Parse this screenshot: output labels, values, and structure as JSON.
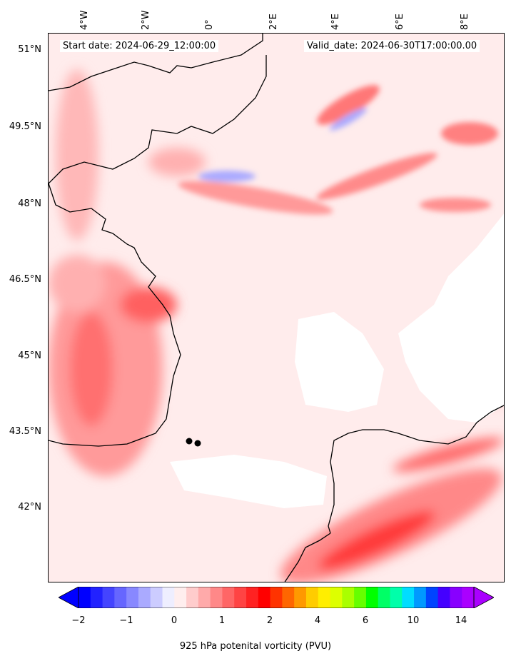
{
  "header": {
    "start_label": "Start date: 2024-06-29_12:00:00",
    "valid_label": "Valid_date: 2024-06-30T17:00:00.00"
  },
  "axes": {
    "lon_labels": [
      "4°W",
      "2°W",
      "0°",
      "2°E",
      "4°E",
      "6°E",
      "8°E"
    ],
    "lat_labels": [
      "51°N",
      "49.5°N",
      "48°N",
      "46.5°N",
      "45°N",
      "43.5°N",
      "42°N"
    ]
  },
  "colorbar": {
    "label": "925 hPa potenital vorticity (PVU)",
    "tick_labels": [
      "−2",
      "−1",
      "0",
      "1",
      "2",
      "4",
      "6",
      "10",
      "14"
    ],
    "colors": [
      "#0000ff",
      "#2222ff",
      "#4444ff",
      "#6666ff",
      "#8888ff",
      "#aaaaff",
      "#ccccff",
      "#eeeeff",
      "#ffeeee",
      "#ffcccc",
      "#ffaaaa",
      "#ff8888",
      "#ff6666",
      "#ff4444",
      "#ff2222",
      "#ff0000",
      "#ff3300",
      "#ff6600",
      "#ff9900",
      "#ffcc00",
      "#ffee00",
      "#ddff00",
      "#aaff00",
      "#66ff00",
      "#00ff00",
      "#00ff66",
      "#00ffaa",
      "#00ddff",
      "#0099ff",
      "#0044ff",
      "#4400ff",
      "#8800ff",
      "#aa00ff"
    ],
    "under_color": "#0000ff",
    "over_color": "#aa00ff"
  },
  "map": {
    "projection": "lambert-conformal",
    "region": "France and Bay of Biscay",
    "sea_color": "#ffe0e0",
    "land_color": "#fff4f4",
    "coastline_color": "#000000"
  }
}
